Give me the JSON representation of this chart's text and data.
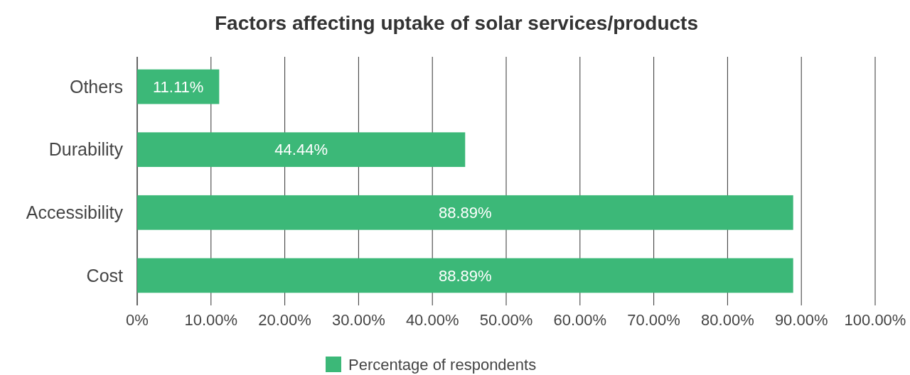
{
  "chart_data": {
    "type": "bar",
    "orientation": "horizontal",
    "title": "Factors affecting uptake of solar services/products",
    "categories": [
      "Others",
      "Durability",
      "Accessibility",
      "Cost"
    ],
    "series": [
      {
        "name": "Percentage of respondents",
        "color": "#3cb878",
        "values": [
          11.11,
          44.44,
          88.89,
          88.89
        ]
      }
    ],
    "value_labels": [
      "11.11%",
      "44.44%",
      "88.89%",
      "88.89%"
    ],
    "xlim": [
      0,
      100
    ],
    "xticks": [
      {
        "value": 0,
        "label": "0%"
      },
      {
        "value": 10,
        "label": "10.00%"
      },
      {
        "value": 20,
        "label": "20.00%"
      },
      {
        "value": 30,
        "label": "30.00%"
      },
      {
        "value": 40,
        "label": "40.00%"
      },
      {
        "value": 50,
        "label": "50.00%"
      },
      {
        "value": 60,
        "label": "60.00%"
      },
      {
        "value": 70,
        "label": "70.00%"
      },
      {
        "value": 80,
        "label": "80.00%"
      },
      {
        "value": 90,
        "label": "90.00%"
      },
      {
        "value": 100,
        "label": "100.00%"
      }
    ],
    "grid": "x",
    "legend": "bottom"
  }
}
